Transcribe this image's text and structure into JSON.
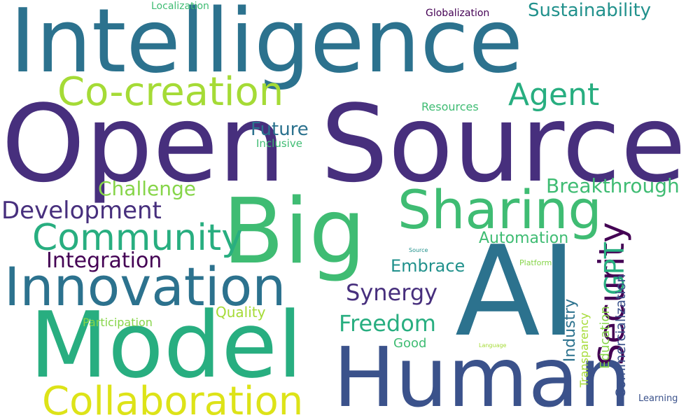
{
  "colors": {
    "deep_purple": "#440154",
    "indigo": "#472f7d",
    "blue": "#3b528b",
    "teal_blue": "#2c728e",
    "teal": "#21918c",
    "sea_green": "#28ae80",
    "green": "#3fbc73",
    "lime": "#86d549",
    "yellow_green": "#a5db36",
    "yellow": "#dde318"
  },
  "words": {
    "intelligence": "Intelligence",
    "open": "Open",
    "source": "Source",
    "big": "Big",
    "ai": "AI",
    "model": "Model",
    "human": "Human",
    "innovation": "Innovation",
    "sharing": "Sharing",
    "collaboration": "Collaboration",
    "community": "Community",
    "co_creation": "Co-creation",
    "agent": "Agent",
    "security": "Security",
    "gpt": "GPT",
    "development": "Development",
    "freedom": "Freedom",
    "synergy": "Synergy",
    "integration": "Integration",
    "breakthrough": "Breakthrough",
    "challenge": "Challenge",
    "sustainability": "Sustainability",
    "future": "Future",
    "embrace": "Embrace",
    "automation": "Automation",
    "industry": "Industry",
    "commercialization": "Commercialization",
    "quality": "Quality",
    "education": "Education",
    "transparency": "Transparency",
    "participation": "Participation",
    "good": "Good",
    "resources": "Resources",
    "inclusive": "Inclusive",
    "localization": "Localization",
    "globalization": "Globalization",
    "learning": "Learning",
    "platform": "Platform",
    "source_small": "Source",
    "language": "Language"
  }
}
